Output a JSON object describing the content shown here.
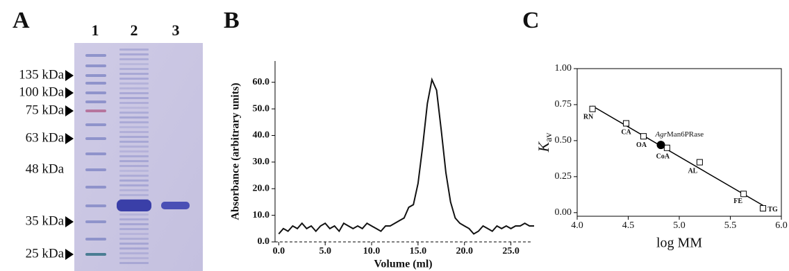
{
  "gel": {
    "panel_label": "A",
    "lanes": [
      "1",
      "2",
      "3"
    ],
    "markers": [
      "135 kDa",
      "100 kDa",
      "75 kDa",
      "63 kDa",
      "48 kDa",
      "35 kDa",
      "25 kDa"
    ]
  },
  "chart_data": [
    {
      "type": "line",
      "panel_label": "B",
      "xlabel": "Volume (ml)",
      "ylabel": "Absorbance (arbitrary units)",
      "color": "#111111",
      "x": [
        0,
        0.5,
        1,
        1.5,
        2,
        2.5,
        3,
        3.5,
        4,
        4.5,
        5,
        5.5,
        6,
        6.5,
        7,
        7.5,
        8,
        8.5,
        9,
        9.5,
        10,
        10.5,
        11,
        11.5,
        12,
        12.5,
        13,
        13.5,
        14,
        14.5,
        15,
        15.5,
        16,
        16.5,
        17,
        17.5,
        18,
        18.5,
        19,
        19.5,
        20,
        20.5,
        21,
        21.5,
        22,
        22.5,
        23,
        23.5,
        24,
        24.5,
        25,
        25.5,
        26,
        26.5,
        27,
        27.5
      ],
      "values": [
        3,
        5,
        4,
        6,
        5,
        7,
        5,
        6,
        4,
        6,
        7,
        5,
        6,
        4,
        7,
        6,
        5,
        6,
        5,
        7,
        6,
        5,
        4,
        6,
        6,
        7,
        8,
        9,
        13,
        14,
        22,
        36,
        52,
        61,
        57,
        42,
        26,
        15,
        9,
        7,
        6,
        5,
        3,
        4,
        6,
        5,
        4,
        6,
        5,
        6,
        5,
        6,
        6,
        7,
        6,
        6
      ],
      "xlim": [
        -0.4,
        27.2
      ],
      "ylim": [
        0,
        68
      ],
      "xticks": [
        {
          "value": 0,
          "label": "0.0"
        },
        {
          "value": 5,
          "label": "5.0"
        },
        {
          "value": 10,
          "label": "10.0"
        },
        {
          "value": 15,
          "label": "15.0"
        },
        {
          "value": 20,
          "label": "20.0"
        },
        {
          "value": 25,
          "label": "25.0"
        }
      ],
      "yticks": [
        {
          "value": 0,
          "label": "0.0"
        },
        {
          "value": 10,
          "label": "10.0"
        },
        {
          "value": 20,
          "label": "20.0"
        },
        {
          "value": 30,
          "label": "30.0"
        },
        {
          "value": 40,
          "label": "40.0"
        },
        {
          "value": 50,
          "label": "50.0"
        },
        {
          "value": 60,
          "label": "60.0"
        }
      ]
    },
    {
      "type": "scatter",
      "panel_label": "C",
      "xlabel": "log MM",
      "ylabel": "K",
      "ylabel_sub": "av",
      "points": [
        {
          "label": "RN",
          "x": 4.15,
          "y": 0.72
        },
        {
          "label": "CA",
          "x": 4.48,
          "y": 0.62
        },
        {
          "label": "OA",
          "x": 4.65,
          "y": 0.53
        },
        {
          "label": "CoA",
          "x": 4.88,
          "y": 0.45
        },
        {
          "label": "AL",
          "x": 5.2,
          "y": 0.35
        },
        {
          "label": "FE",
          "x": 5.63,
          "y": 0.13
        },
        {
          "label": "TG",
          "x": 5.82,
          "y": 0.03
        }
      ],
      "sample": {
        "label_italic": "Agr",
        "label_rest": "Man6PRase",
        "x": 4.82,
        "y": 0.47
      },
      "fit": {
        "x": [
          4.15,
          5.82
        ],
        "values": [
          0.74,
          0.05
        ]
      },
      "xlim": [
        4.0,
        6.0
      ],
      "ylim": [
        -0.025,
        1.0
      ],
      "xticks": [
        {
          "value": 4,
          "label": "4.0"
        },
        {
          "value": 4.5,
          "label": "4.5"
        },
        {
          "value": 5,
          "label": "5.0"
        },
        {
          "value": 5.5,
          "label": "5.5"
        },
        {
          "value": 6,
          "label": "6.0"
        }
      ],
      "yticks": [
        {
          "value": 0,
          "label": "0.00"
        },
        {
          "value": 0.25,
          "label": "0.25"
        },
        {
          "value": 0.5,
          "label": "0.50"
        },
        {
          "value": 0.75,
          "label": "0.75"
        },
        {
          "value": 1,
          "label": "1.00"
        }
      ]
    }
  ]
}
